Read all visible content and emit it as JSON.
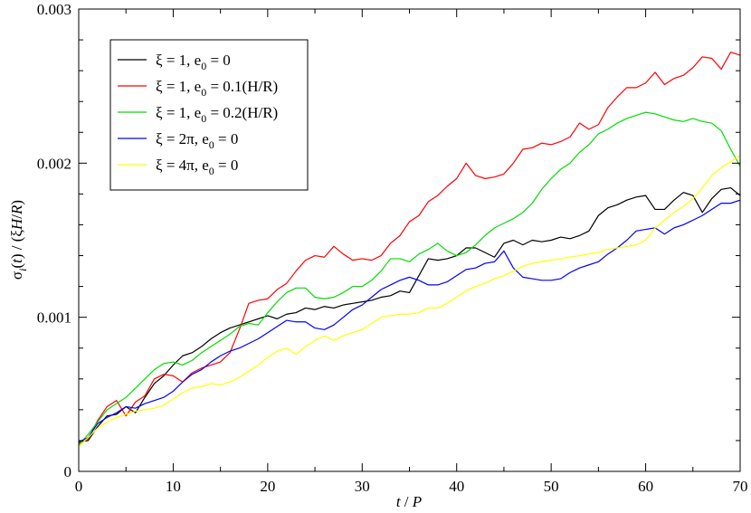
{
  "chart_data": {
    "type": "line",
    "title": "",
    "xlabel": "t / P",
    "ylabel": "σi(t) / (ξH/R)",
    "xlim": [
      0,
      70
    ],
    "ylim": [
      0,
      0.003
    ],
    "x_ticks": [
      "0",
      "10",
      "20",
      "30",
      "40",
      "50",
      "60",
      "70"
    ],
    "y_ticks": [
      "0",
      "0.001",
      "0.002",
      "0.003"
    ],
    "grid": false,
    "legend_position": "top-left",
    "series": [
      {
        "name": "ξ = 1, e0 = 0",
        "color": "#000000",
        "x": [
          0,
          1,
          2,
          3,
          4,
          5,
          6,
          7,
          8,
          9,
          10,
          11,
          12,
          13,
          14,
          15,
          16,
          17,
          18,
          19,
          20,
          21,
          22,
          23,
          24,
          25,
          26,
          27,
          28,
          29,
          30,
          31,
          32,
          33,
          34,
          35,
          36,
          37,
          38,
          39,
          40,
          41,
          42,
          43,
          44,
          45,
          46,
          47,
          48,
          49,
          50,
          51,
          52,
          53,
          54,
          55,
          56,
          57,
          58,
          59,
          60,
          61,
          62,
          63,
          64,
          65,
          66,
          67,
          68,
          69,
          70
        ],
        "y": [
          0.00019,
          0.0002,
          0.00029,
          0.00036,
          0.00037,
          0.00042,
          0.00038,
          0.00048,
          0.00057,
          0.00062,
          0.00069,
          0.00075,
          0.00077,
          0.00081,
          0.00086,
          0.0009,
          0.00093,
          0.00095,
          0.00097,
          0.00099,
          0.00101,
          0.00099,
          0.00102,
          0.00103,
          0.00106,
          0.00105,
          0.00107,
          0.00106,
          0.00108,
          0.00109,
          0.0011,
          0.00111,
          0.00113,
          0.00114,
          0.00117,
          0.00116,
          0.00127,
          0.00138,
          0.00137,
          0.00138,
          0.0014,
          0.00145,
          0.00145,
          0.00142,
          0.00139,
          0.00148,
          0.0015,
          0.00147,
          0.0015,
          0.00149,
          0.0015,
          0.00152,
          0.00151,
          0.00153,
          0.00156,
          0.00166,
          0.00171,
          0.00173,
          0.00176,
          0.00178,
          0.00179,
          0.0017,
          0.0017,
          0.00176,
          0.00181,
          0.00179,
          0.00168,
          0.00177,
          0.00183,
          0.00184,
          0.00179
        ]
      },
      {
        "name": "ξ = 1, e0 = 0.1(H/R)",
        "color": "#ff0000",
        "x": [
          0,
          1,
          2,
          3,
          4,
          5,
          6,
          7,
          8,
          9,
          10,
          11,
          12,
          13,
          14,
          15,
          16,
          17,
          18,
          19,
          20,
          21,
          22,
          23,
          24,
          25,
          26,
          27,
          28,
          29,
          30,
          31,
          32,
          33,
          34,
          35,
          36,
          37,
          38,
          39,
          40,
          41,
          42,
          43,
          44,
          45,
          46,
          47,
          48,
          49,
          50,
          51,
          52,
          53,
          54,
          55,
          56,
          57,
          58,
          59,
          60,
          61,
          62,
          63,
          64,
          65,
          66,
          67,
          68,
          69,
          70
        ],
        "y": [
          0.00018,
          0.00021,
          0.00033,
          0.00042,
          0.00046,
          0.00036,
          0.00045,
          0.00049,
          0.0006,
          0.00063,
          0.00062,
          0.00058,
          0.00064,
          0.00067,
          0.00069,
          0.00071,
          0.00077,
          0.00092,
          0.00109,
          0.00111,
          0.00112,
          0.00118,
          0.00122,
          0.0013,
          0.00137,
          0.0014,
          0.00139,
          0.00146,
          0.00141,
          0.00137,
          0.00138,
          0.00137,
          0.0014,
          0.00148,
          0.00153,
          0.00162,
          0.00166,
          0.00175,
          0.00179,
          0.00185,
          0.0019,
          0.002,
          0.00192,
          0.0019,
          0.00191,
          0.00193,
          0.002,
          0.00209,
          0.0021,
          0.00213,
          0.00212,
          0.00214,
          0.00217,
          0.00226,
          0.00222,
          0.00225,
          0.00236,
          0.00243,
          0.00249,
          0.00249,
          0.00252,
          0.00259,
          0.00251,
          0.00255,
          0.00257,
          0.00262,
          0.00269,
          0.00268,
          0.00261,
          0.00272,
          0.0027
        ]
      },
      {
        "name": "ξ = 1, e0 = 0.2(H/R)",
        "color": "#00dd00",
        "x": [
          0,
          1,
          2,
          3,
          4,
          5,
          6,
          7,
          8,
          9,
          10,
          11,
          12,
          13,
          14,
          15,
          16,
          17,
          18,
          19,
          20,
          21,
          22,
          23,
          24,
          25,
          26,
          27,
          28,
          29,
          30,
          31,
          32,
          33,
          34,
          35,
          36,
          37,
          38,
          39,
          40,
          41,
          42,
          43,
          44,
          45,
          46,
          47,
          48,
          49,
          50,
          51,
          52,
          53,
          54,
          55,
          56,
          57,
          58,
          59,
          60,
          61,
          62,
          63,
          64,
          65,
          66,
          67,
          68,
          69,
          70
        ],
        "y": [
          0.00017,
          0.00024,
          0.00032,
          0.0004,
          0.00044,
          0.00048,
          0.00054,
          0.0006,
          0.00066,
          0.0007,
          0.00071,
          0.00069,
          0.00072,
          0.00077,
          0.00081,
          0.00085,
          0.00089,
          0.00094,
          0.00096,
          0.00095,
          0.00103,
          0.0011,
          0.00116,
          0.00119,
          0.00119,
          0.00113,
          0.00112,
          0.00113,
          0.00116,
          0.0012,
          0.0012,
          0.00124,
          0.0013,
          0.00138,
          0.00138,
          0.00136,
          0.00141,
          0.00144,
          0.00148,
          0.00143,
          0.0014,
          0.00142,
          0.00147,
          0.00153,
          0.00158,
          0.00161,
          0.00164,
          0.00168,
          0.00174,
          0.00183,
          0.0019,
          0.00196,
          0.002,
          0.00207,
          0.00212,
          0.00219,
          0.00222,
          0.00226,
          0.00229,
          0.00231,
          0.00233,
          0.00232,
          0.0023,
          0.00228,
          0.00227,
          0.00229,
          0.00227,
          0.00226,
          0.00221,
          0.00209,
          0.00198
        ]
      },
      {
        "name": "ξ = 2π, e0 = 0",
        "color": "#0000ff",
        "x": [
          0,
          1,
          2,
          3,
          4,
          5,
          6,
          7,
          8,
          9,
          10,
          11,
          12,
          13,
          14,
          15,
          16,
          17,
          18,
          19,
          20,
          21,
          22,
          23,
          24,
          25,
          26,
          27,
          28,
          29,
          30,
          31,
          32,
          33,
          34,
          35,
          36,
          37,
          38,
          39,
          40,
          41,
          42,
          43,
          44,
          45,
          46,
          47,
          48,
          49,
          50,
          51,
          52,
          53,
          54,
          55,
          56,
          57,
          58,
          59,
          60,
          61,
          62,
          63,
          64,
          65,
          66,
          67,
          68,
          69,
          70
        ],
        "y": [
          0.00019,
          0.00022,
          0.00031,
          0.00035,
          0.00038,
          0.00042,
          0.00041,
          0.00044,
          0.00046,
          0.00048,
          0.00052,
          0.00058,
          0.00063,
          0.00066,
          0.00071,
          0.00075,
          0.00078,
          0.0008,
          0.00083,
          0.00086,
          0.0009,
          0.00094,
          0.00098,
          0.00097,
          0.00097,
          0.00093,
          0.00092,
          0.00095,
          0.001,
          0.00105,
          0.00108,
          0.00113,
          0.00118,
          0.00121,
          0.00124,
          0.00126,
          0.00124,
          0.00121,
          0.00121,
          0.00123,
          0.00127,
          0.00131,
          0.00132,
          0.00135,
          0.00136,
          0.00143,
          0.00132,
          0.00126,
          0.00125,
          0.00124,
          0.00124,
          0.00125,
          0.00129,
          0.00132,
          0.00134,
          0.00136,
          0.00141,
          0.00145,
          0.0015,
          0.00156,
          0.00157,
          0.00158,
          0.00154,
          0.00158,
          0.0016,
          0.00163,
          0.00166,
          0.0017,
          0.00174,
          0.00174,
          0.00176
        ]
      },
      {
        "name": "ξ = 4π, e0 = 0",
        "color": "#ffff00",
        "x": [
          0,
          1,
          2,
          3,
          4,
          5,
          6,
          7,
          8,
          9,
          10,
          11,
          12,
          13,
          14,
          15,
          16,
          17,
          18,
          19,
          20,
          21,
          22,
          23,
          24,
          25,
          26,
          27,
          28,
          29,
          30,
          31,
          32,
          33,
          34,
          35,
          36,
          37,
          38,
          39,
          40,
          41,
          42,
          43,
          44,
          45,
          46,
          47,
          48,
          49,
          50,
          51,
          52,
          53,
          54,
          55,
          56,
          57,
          58,
          59,
          60,
          61,
          62,
          63,
          64,
          65,
          66,
          67,
          68,
          69,
          70
        ],
        "y": [
          0.00016,
          0.00022,
          0.00028,
          0.00032,
          0.00035,
          0.00037,
          0.00039,
          0.0004,
          0.00041,
          0.00043,
          0.00047,
          0.00051,
          0.00054,
          0.00055,
          0.00057,
          0.00056,
          0.00058,
          0.00061,
          0.00065,
          0.00069,
          0.00074,
          0.00078,
          0.0008,
          0.00076,
          0.00081,
          0.00085,
          0.00088,
          0.00085,
          0.00088,
          0.0009,
          0.00092,
          0.00096,
          0.001,
          0.00101,
          0.00102,
          0.00102,
          0.00103,
          0.00106,
          0.00106,
          0.00109,
          0.00113,
          0.00117,
          0.0012,
          0.00122,
          0.00125,
          0.00127,
          0.0013,
          0.00133,
          0.00135,
          0.00136,
          0.00137,
          0.00138,
          0.00139,
          0.0014,
          0.00141,
          0.00142,
          0.00144,
          0.00145,
          0.00146,
          0.00147,
          0.0015,
          0.00158,
          0.00163,
          0.00168,
          0.00172,
          0.00177,
          0.00184,
          0.00192,
          0.00197,
          0.00201,
          0.00205
        ]
      }
    ]
  },
  "legend": {
    "items": [
      {
        "prefix": "ξ = 1, e",
        "sub": "0",
        "suffix": " = 0",
        "color": "#000000"
      },
      {
        "prefix": "ξ = 1, e",
        "sub": "0",
        "suffix": " = 0.1(H/R)",
        "color": "#ff0000"
      },
      {
        "prefix": "ξ = 1, e",
        "sub": "0",
        "suffix": " = 0.2(H/R)",
        "color": "#00dd00"
      },
      {
        "prefix": "ξ = 2π, e",
        "sub": "0",
        "suffix": " = 0",
        "color": "#0000ff"
      },
      {
        "prefix": "ξ = 4π, e",
        "sub": "0",
        "suffix": " = 0",
        "color": "#ffff00"
      }
    ]
  }
}
